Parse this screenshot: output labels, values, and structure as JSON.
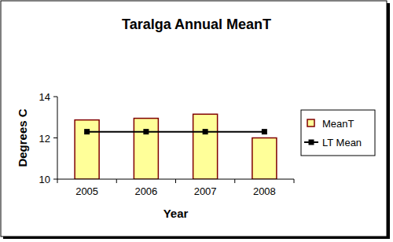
{
  "chart_data": {
    "type": "bar",
    "title": "Taralga Annual MeanT",
    "x_label": "Year",
    "y_label": "Degrees C",
    "categories": [
      "2005",
      "2006",
      "2007",
      "2008"
    ],
    "series": [
      {
        "name": "MeanT",
        "type": "bar",
        "color": "#ffff99",
        "values": [
          12.87,
          12.95,
          13.15,
          12.0
        ]
      },
      {
        "name": "LT Mean",
        "type": "line",
        "color": "#000000",
        "marker": "square",
        "line_style": "solid",
        "values": [
          12.3,
          12.3,
          12.3,
          12.3
        ]
      }
    ],
    "ylim": [
      10,
      14
    ],
    "yticks": [
      10,
      12,
      14
    ],
    "grid": false,
    "legend": "right"
  }
}
